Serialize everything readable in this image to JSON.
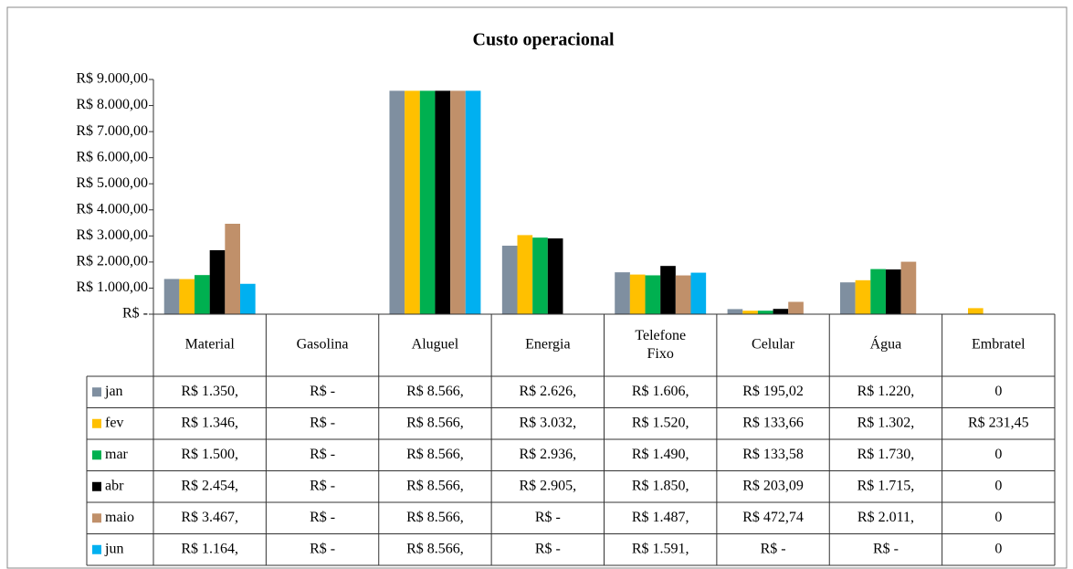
{
  "chart_data": {
    "type": "bar",
    "title": "Custo operacional",
    "categories": [
      "Material",
      "Gasolina",
      "Aluguel",
      "Energia",
      "Telefone Fixo",
      "Celular",
      "Água",
      "Embratel"
    ],
    "series": [
      {
        "name": "jan",
        "color": "#7f8fa0",
        "values": [
          1350,
          0,
          8566,
          2626,
          1606,
          195.02,
          1220,
          0
        ],
        "value_labels": [
          "R$ 1.350,",
          "R$ -",
          "R$ 8.566,",
          "R$ 2.626,",
          "R$ 1.606,",
          "R$ 195,02",
          "R$ 1.220,",
          "0"
        ]
      },
      {
        "name": "fev",
        "color": "#ffc000",
        "values": [
          1346,
          0,
          8566,
          3032,
          1520,
          133.66,
          1302,
          231.45
        ],
        "value_labels": [
          "R$ 1.346,",
          "R$ -",
          "R$ 8.566,",
          "R$ 3.032,",
          "R$ 1.520,",
          "R$ 133,66",
          "R$ 1.302,",
          "R$ 231,45"
        ]
      },
      {
        "name": "mar",
        "color": "#00b050",
        "values": [
          1500,
          0,
          8566,
          2936,
          1490,
          133.58,
          1730,
          0
        ],
        "value_labels": [
          "R$ 1.500,",
          "R$ -",
          "R$ 8.566,",
          "R$ 2.936,",
          "R$ 1.490,",
          "R$ 133,58",
          "R$ 1.730,",
          "0"
        ]
      },
      {
        "name": "abr",
        "color": "#000000",
        "values": [
          2454,
          0,
          8566,
          2905,
          1850,
          203.09,
          1715,
          0
        ],
        "value_labels": [
          "R$ 2.454,",
          "R$ -",
          "R$ 8.566,",
          "R$ 2.905,",
          "R$ 1.850,",
          "R$ 203,09",
          "R$ 1.715,",
          "0"
        ]
      },
      {
        "name": "maio",
        "color": "#c0906a",
        "values": [
          3467,
          0,
          8566,
          0,
          1487,
          472.74,
          2011,
          0
        ],
        "value_labels": [
          "R$ 3.467,",
          "R$ -",
          "R$ 8.566,",
          "R$ -",
          "R$ 1.487,",
          "R$ 472,74",
          "R$ 2.011,",
          "0"
        ]
      },
      {
        "name": "jun",
        "color": "#00b0f0",
        "values": [
          1164,
          0,
          8566,
          0,
          1591,
          0,
          0,
          0
        ],
        "value_labels": [
          "R$ 1.164,",
          "R$ -",
          "R$ 8.566,",
          "R$ -",
          "R$ 1.591,",
          "R$ -",
          "R$ -",
          "0"
        ]
      }
    ],
    "ylim": [
      0,
      9000
    ],
    "yticks": [
      {
        "value": 0,
        "label": "R$ -"
      },
      {
        "value": 1000,
        "label": "R$ 1.000,00"
      },
      {
        "value": 2000,
        "label": "R$ 2.000,00"
      },
      {
        "value": 3000,
        "label": "R$ 3.000,00"
      },
      {
        "value": 4000,
        "label": "R$ 4.000,00"
      },
      {
        "value": 5000,
        "label": "R$ 5.000,00"
      },
      {
        "value": 6000,
        "label": "R$ 6.000,00"
      },
      {
        "value": 7000,
        "label": "R$ 7.000,00"
      },
      {
        "value": 8000,
        "label": "R$ 8.000,00"
      },
      {
        "value": 9000,
        "label": "R$ 9.000,00"
      }
    ],
    "grid": false
  }
}
